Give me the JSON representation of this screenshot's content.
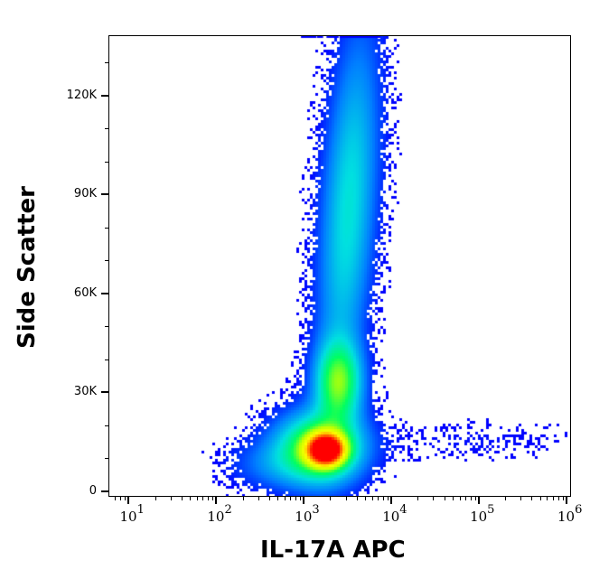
{
  "chart_data": {
    "type": "heatmap",
    "subtype": "flow-cytometry-density-plot",
    "title": "",
    "xlabel": "IL-17A APC",
    "ylabel": "Side Scatter",
    "x_scale": "log",
    "xlim": [
      6,
      1100000
    ],
    "x_ticks": [
      {
        "base": "10",
        "exp": "1",
        "value": 10
      },
      {
        "base": "10",
        "exp": "2",
        "value": 100
      },
      {
        "base": "10",
        "exp": "3",
        "value": 1000
      },
      {
        "base": "10",
        "exp": "4",
        "value": 10000
      },
      {
        "base": "10",
        "exp": "5",
        "value": 100000
      },
      {
        "base": "10",
        "exp": "6",
        "value": 1000000
      }
    ],
    "y_scale": "linear",
    "ylim": [
      -1500,
      138000
    ],
    "y_ticks": [
      {
        "label": "0",
        "value": 0
      },
      {
        "label": "30K",
        "value": 30000
      },
      {
        "label": "60K",
        "value": 60000
      },
      {
        "label": "90K",
        "value": 90000
      },
      {
        "label": "120K",
        "value": 120000
      }
    ],
    "y_minor_step": 10000,
    "colormap": [
      "#0000ff",
      "#0080ff",
      "#00e0e0",
      "#00ff60",
      "#c0ff00",
      "#ffff00",
      "#ff8000",
      "#ff0000"
    ],
    "grid": false,
    "legend": null,
    "populations": [
      {
        "name": "main-lymphocyte-core",
        "x_center": 1800,
        "y_center": 12500,
        "x_spread_decades": 0.14,
        "y_spread": 3200,
        "weight": 1.0
      },
      {
        "name": "main-cluster-halo",
        "x_center": 1500,
        "y_center": 13000,
        "x_spread_decades": 0.32,
        "y_spread": 7000,
        "weight": 0.45
      },
      {
        "name": "secondary-cluster",
        "x_center": 2500,
        "y_center": 33000,
        "x_spread_decades": 0.17,
        "y_spread": 8000,
        "weight": 0.38
      },
      {
        "name": "high-ssc-column",
        "x_center": 2800,
        "y_center": 85000,
        "x_spread_decades": 0.2,
        "y_spread": 35000,
        "weight": 0.22
      },
      {
        "name": "low-left-tail",
        "x_center": 450,
        "y_center": 8000,
        "x_spread_decades": 0.35,
        "y_spread": 5000,
        "weight": 0.08
      },
      {
        "name": "positive-horizontal-tail",
        "x_center": 80000,
        "y_center": 15000,
        "x_spread_decades": 0.8,
        "y_spread": 4000,
        "weight": 0.02
      }
    ],
    "annotations": []
  }
}
